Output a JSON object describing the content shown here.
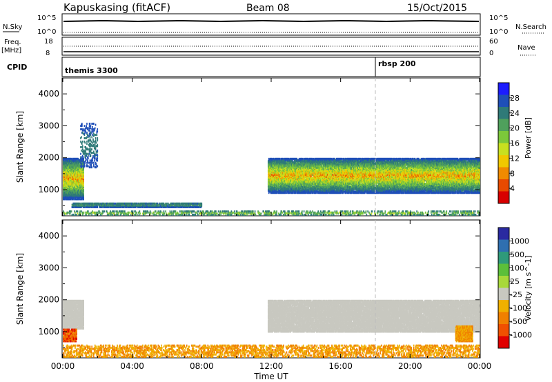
{
  "header": {
    "station": "Kapuskasing (fitACF)",
    "beam": "Beam 08",
    "date": "15/Oct/2015"
  },
  "top_panels": {
    "nsky_label": "N.Sky",
    "nsky_ticks": [
      "10^5",
      "10^0"
    ],
    "nsearch_label": "N.Search",
    "nsearch_ticks": [
      "10^5",
      "10^0"
    ],
    "freq_label": "Freq.",
    "freq_unit": "[MHz]",
    "freq_ticks": [
      "18",
      "8"
    ],
    "nave_label": "Nave",
    "nave_ticks": [
      "60",
      "0"
    ],
    "cpid_label": "CPID",
    "cpid_segments": [
      {
        "label": "themis 3300",
        "start_hour": 0
      },
      {
        "label": "rbsp 200",
        "start_hour": 18.0
      }
    ]
  },
  "axes": {
    "ylabel": "Slant Range [km]",
    "yticks": [
      "1000",
      "2000",
      "3000",
      "4000"
    ],
    "yrange": [
      180,
      4500
    ],
    "xlabel": "Time UT",
    "xticks": [
      "00:00",
      "04:00",
      "08:00",
      "12:00",
      "16:00",
      "20:00",
      "00:00"
    ],
    "xrange_hours": [
      0,
      24
    ],
    "marker_hour": 18.0
  },
  "colorbars": {
    "power": {
      "label": "Power [dB]",
      "ticks": [
        "4",
        "8",
        "12",
        "16",
        "20",
        "24",
        "28"
      ],
      "range": [
        0,
        32
      ],
      "colors": [
        "#1c1cff",
        "#1f4fb8",
        "#2f7a78",
        "#4fa05c",
        "#7cc83a",
        "#c8e020",
        "#f0c800",
        "#f08a00",
        "#e84a00",
        "#d80000"
      ]
    },
    "velocity": {
      "label": "Velocity [m s^-1]",
      "ticks": [
        "1000",
        "500",
        "100",
        "25",
        "-25",
        "-100",
        "-500",
        "-1000"
      ],
      "colors": [
        "#2a2aa0",
        "#2f6fb0",
        "#2f9a7a",
        "#5cbf3a",
        "#a8d83a",
        "#c8c8c0",
        "#f0b000",
        "#f08000",
        "#f05000",
        "#e00000"
      ]
    }
  },
  "chart_data": [
    {
      "type": "heatmap",
      "title": "",
      "quantity": "Power [dB]",
      "xlabel": "Time UT",
      "ylabel": "Slant Range [km]",
      "x_unit": "hours UT",
      "xlim": [
        0,
        24
      ],
      "ylim": [
        180,
        4500
      ],
      "grid": false,
      "regions": [
        {
          "name": "early ground/ionospheric scatter",
          "t": [
            0.0,
            1.2
          ],
          "range_km": [
            700,
            2000
          ],
          "power_db": [
            4,
            28
          ]
        },
        {
          "name": "early high-range echoes",
          "t": [
            1.0,
            2.0
          ],
          "range_km": [
            1700,
            3100
          ],
          "power_db": [
            4,
            10
          ]
        },
        {
          "name": "near-range band",
          "t": [
            0.5,
            8.0
          ],
          "range_km": [
            450,
            600
          ],
          "power_db": [
            4,
            12
          ]
        },
        {
          "name": "main evening band",
          "t": [
            11.8,
            24.0
          ],
          "range_km": [
            900,
            2000
          ],
          "power_db": [
            4,
            28
          ]
        },
        {
          "name": "near-range clutter",
          "t": [
            0.0,
            24.0
          ],
          "range_km": [
            180,
            350
          ],
          "power_db": [
            4,
            20
          ]
        }
      ]
    },
    {
      "type": "heatmap",
      "title": "",
      "quantity": "Velocity [m s^-1]",
      "xlabel": "Time UT",
      "ylabel": "Slant Range [km]",
      "x_unit": "hours UT",
      "xlim": [
        0,
        24
      ],
      "ylim": [
        180,
        4500
      ],
      "grid": false,
      "regions": [
        {
          "name": "early ground scatter",
          "t": [
            0.0,
            1.2
          ],
          "range_km": [
            1100,
            2000
          ],
          "velocity": "-25..25"
        },
        {
          "name": "early red echoes",
          "t": [
            0.0,
            0.8
          ],
          "range_km": [
            700,
            1100
          ],
          "velocity": "-1000..-100"
        },
        {
          "name": "main evening ground scatter band",
          "t": [
            11.8,
            24.0
          ],
          "range_km": [
            1000,
            2000
          ],
          "velocity": "-25..25"
        },
        {
          "name": "late orange echoes",
          "t": [
            22.6,
            23.6
          ],
          "range_km": [
            700,
            1200
          ],
          "velocity": "-500..-100"
        },
        {
          "name": "near-range clutter",
          "t": [
            0.0,
            24.0
          ],
          "range_km": [
            180,
            600
          ],
          "velocity": "-500..500"
        }
      ]
    }
  ]
}
